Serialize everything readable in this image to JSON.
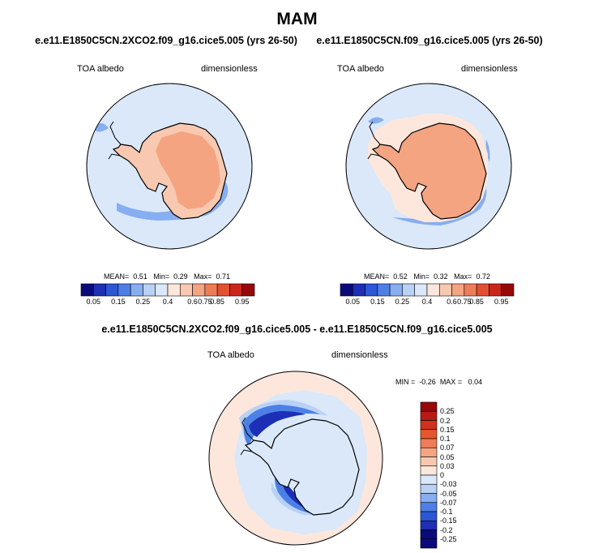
{
  "figure": {
    "season": "MAM",
    "map1": {
      "title": "e.e11.E1850C5CN.2XCO2.f09_g16.cice5.005 (yrs 26-50)",
      "variable": "TOA albedo",
      "units": "dimensionless",
      "stats": {
        "mean_label": "MEAN=",
        "mean": "0.51",
        "min_label": "Min=",
        "min": "0.29",
        "max_label": "Max=",
        "max": "0.71"
      }
    },
    "map2": {
      "title": "e.e11.E1850C5CN.f09_g16.cice5.005 (yrs 26-50)",
      "variable": "TOA albedo",
      "units": "dimensionless",
      "stats": {
        "mean_label": "MEAN=",
        "mean": "0.52",
        "min_label": "Min=",
        "min": "0.32",
        "max_label": "Max=",
        "max": "0.72"
      }
    },
    "diff": {
      "title": "e.e11.E1850C5CN.2XCO2.f09_g16.cice5.005 - e.e11.E1850C5CN.f09_g16.cice5.005",
      "variable": "TOA albedo",
      "units": "dimensionless",
      "stats": {
        "min_label": "MIN =",
        "min": "-0.26",
        "max_label": "MAX =",
        "max": "0.04"
      }
    },
    "colorbar_abs": {
      "colors": [
        "#0a0a7a",
        "#1c2fb5",
        "#2c57d6",
        "#4d80e6",
        "#86aef0",
        "#b8d1f5",
        "#dae8fa",
        "#fde7dc",
        "#f8c9b0",
        "#f4a481",
        "#ee7c56",
        "#e4502f",
        "#cc261a",
        "#980808"
      ],
      "labels": [
        "0.05",
        "0.15",
        "0.25",
        "0.4",
        "0.6",
        "0.75",
        "0.85",
        "0.95"
      ]
    },
    "colorbar_diff": {
      "colors": [
        "#980808",
        "#b81a14",
        "#d0321e",
        "#e4582e",
        "#ee7c56",
        "#f4a481",
        "#f8c9b0",
        "#fde7dc",
        "#dae8fa",
        "#b8d1f5",
        "#86aef0",
        "#4d80e6",
        "#2c57d6",
        "#1c2fb5",
        "#0a0a7a"
      ],
      "labels": [
        "0.25",
        "0.2",
        "0.15",
        "0.1",
        "0.07",
        "0.05",
        "0.03",
        "0",
        "-0.03",
        "-0.05",
        "-0.07",
        "-0.1",
        "-0.15",
        "-0.2",
        "-0.25"
      ]
    },
    "map_colors": {
      "ocean": "#dae8fa",
      "ocean_edge": "#b8d1f5",
      "ocean_mid": "#86aef0",
      "land1": "#f8c9b0",
      "land2": "#f4a481",
      "diff_pos": "#fde7dc",
      "diff_neg1": "#4d80e6",
      "diff_neg2": "#1c2fb5",
      "outline": "#000000"
    }
  }
}
